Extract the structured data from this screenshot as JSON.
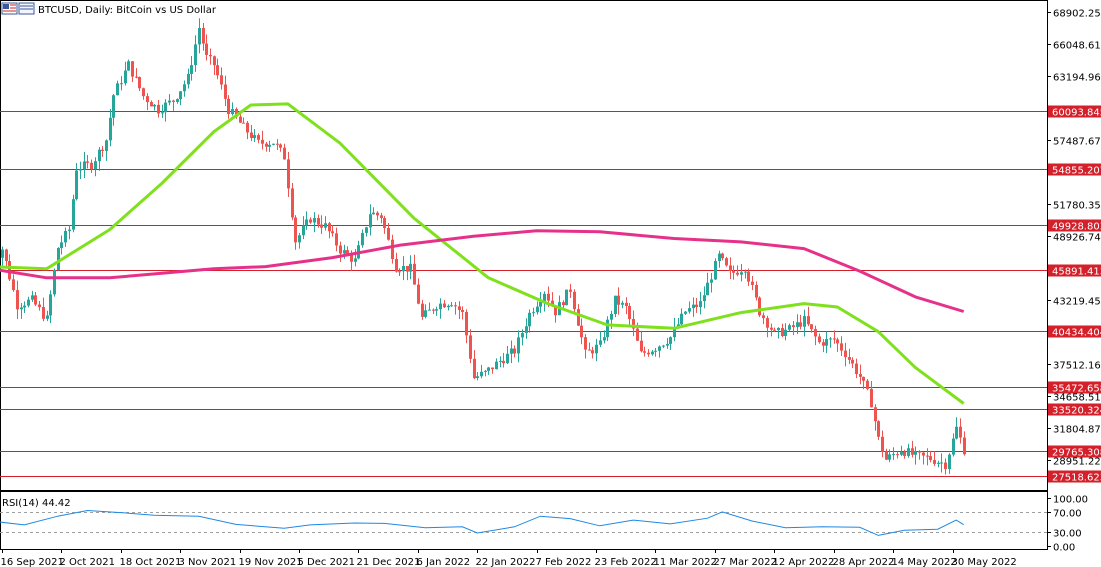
{
  "chart_data": {
    "type": "candlestick",
    "symbol": "BTCUSD",
    "timeframe": "Daily",
    "description": "BitCoin vs US Dollar",
    "title": "BTCUSD, Daily:  BitCoin vs US Dollar",
    "price_axis": {
      "ylim": [
        26290,
        69600
      ],
      "ticks": [
        "68902.255",
        "66048.610",
        "63194.965",
        "57487.675",
        "51780.355",
        "48926.740",
        "43219.455",
        "37512.160",
        "34658.515",
        "31804.870",
        "28951.225"
      ]
    },
    "horizontal_levels": [
      {
        "value": 60093.845,
        "label": "60093.845"
      },
      {
        "value": 54855.207,
        "label": "54855.207"
      },
      {
        "value": 49928.803,
        "label": "49928.803"
      },
      {
        "value": 45891.413,
        "label": "45891.413"
      },
      {
        "value": 40434.404,
        "label": "40434.404"
      },
      {
        "value": 35472.658,
        "label": "35472.658"
      },
      {
        "value": 33520.324,
        "label": "33520.324"
      },
      {
        "value": 29765.308,
        "label": "29765.308"
      },
      {
        "value": 27518.623,
        "label": "27518.623"
      }
    ],
    "close_series": {
      "name": "BTCUSD close",
      "x": [
        "2021-09-13",
        "2021-09-16",
        "2021-09-20",
        "2021-09-24",
        "2021-09-28",
        "2021-10-01",
        "2021-10-04",
        "2021-10-06",
        "2021-10-10",
        "2021-10-14",
        "2021-10-16",
        "2021-10-20",
        "2021-10-24",
        "2021-10-28",
        "2021-11-01",
        "2021-11-05",
        "2021-11-08",
        "2021-11-10",
        "2021-11-12",
        "2021-11-16",
        "2021-11-20",
        "2021-11-24",
        "2021-11-28",
        "2021-12-01",
        "2021-12-04",
        "2021-12-08",
        "2021-12-12",
        "2021-12-16",
        "2021-12-20",
        "2021-12-24",
        "2021-12-27",
        "2021-12-31",
        "2022-01-04",
        "2022-01-07",
        "2022-01-11",
        "2022-01-15",
        "2022-01-18",
        "2022-01-21",
        "2022-01-24",
        "2022-01-28",
        "2022-02-01",
        "2022-02-05",
        "2022-02-09",
        "2022-02-12",
        "2022-02-16",
        "2022-02-20",
        "2022-02-24",
        "2022-02-28",
        "2022-03-03",
        "2022-03-07",
        "2022-03-11",
        "2022-03-15",
        "2022-03-19",
        "2022-03-23",
        "2022-03-28",
        "2022-03-31",
        "2022-04-04",
        "2022-04-08",
        "2022-04-12",
        "2022-04-16",
        "2022-04-20",
        "2022-04-24",
        "2022-04-28",
        "2022-05-01",
        "2022-05-05",
        "2022-05-08",
        "2022-05-10",
        "2022-05-12",
        "2022-05-16",
        "2022-05-20",
        "2022-05-24",
        "2022-05-28",
        "2022-05-31",
        "2022-06-02"
      ],
      "values": [
        46500,
        47800,
        42800,
        43200,
        41500,
        47900,
        49500,
        55000,
        55300,
        57500,
        61500,
        64200,
        61400,
        60200,
        61000,
        63000,
        67500,
        64800,
        64200,
        60200,
        58600,
        57200,
        57300,
        56000,
        48500,
        50500,
        49800,
        47700,
        46700,
        51000,
        50700,
        46200,
        46000,
        41600,
        42800,
        43100,
        42000,
        36300,
        36700,
        37800,
        38700,
        42000,
        44000,
        42200,
        44200,
        38400,
        39200,
        43200,
        42500,
        38400,
        39000,
        39900,
        42200,
        42900,
        47100,
        45500,
        46200,
        42200,
        40200,
        40600,
        41400,
        39400,
        39700,
        38500,
        36400,
        34100,
        30800,
        29000,
        29900,
        29300,
        29100,
        28600,
        31800,
        29900
      ]
    },
    "moving_averages": [
      {
        "color": "#7fe01c",
        "x": [
          "2021-09-13",
          "2021-09-28",
          "2021-10-15",
          "2021-10-29",
          "2021-11-12",
          "2021-11-22",
          "2021-12-02",
          "2021-12-16",
          "2022-01-05",
          "2022-01-25",
          "2022-02-10",
          "2022-02-26",
          "2022-03-16",
          "2022-04-03",
          "2022-04-20",
          "2022-04-29",
          "2022-05-10",
          "2022-05-20",
          "2022-06-02"
        ],
        "values": [
          46200,
          46000,
          49500,
          53600,
          58200,
          60600,
          60700,
          57200,
          50500,
          45200,
          42900,
          41000,
          40700,
          42100,
          42900,
          42600,
          40400,
          37200,
          34000
        ]
      },
      {
        "color": "#e6318a",
        "x": [
          "2021-09-13",
          "2021-09-28",
          "2021-10-15",
          "2021-10-29",
          "2021-11-12",
          "2021-11-26",
          "2021-12-14",
          "2022-01-01",
          "2022-01-21",
          "2022-02-07",
          "2022-02-24",
          "2022-03-16",
          "2022-04-03",
          "2022-04-20",
          "2022-05-05",
          "2022-05-20",
          "2022-06-02"
        ],
        "values": [
          46000,
          45200,
          45200,
          45600,
          46000,
          46200,
          47000,
          48100,
          48900,
          49400,
          49300,
          48700,
          48400,
          47800,
          45800,
          43500,
          42200
        ]
      }
    ],
    "time_axis": {
      "ticks": [
        {
          "date": "2021-09-16",
          "label": "16 Sep 2021"
        },
        {
          "date": "2021-10-02",
          "label": "2 Oct 2021"
        },
        {
          "date": "2021-10-18",
          "label": "18 Oct 2021"
        },
        {
          "date": "2021-11-03",
          "label": "3 Nov 2021"
        },
        {
          "date": "2021-11-19",
          "label": "19 Nov 2021"
        },
        {
          "date": "2021-12-05",
          "label": "5 Dec 2021"
        },
        {
          "date": "2021-12-21",
          "label": "21 Dec 2021"
        },
        {
          "date": "2022-01-06",
          "label": "6 Jan 2022"
        },
        {
          "date": "2022-01-22",
          "label": "22 Jan 2022"
        },
        {
          "date": "2022-02-07",
          "label": "7 Feb 2022"
        },
        {
          "date": "2022-02-23",
          "label": "23 Feb 2022"
        },
        {
          "date": "2022-03-11",
          "label": "11 Mar 2022"
        },
        {
          "date": "2022-03-27",
          "label": "27 Mar 2022"
        },
        {
          "date": "2022-04-12",
          "label": "12 Apr 2022"
        },
        {
          "date": "2022-04-28",
          "label": "28 Apr 2022"
        },
        {
          "date": "2022-05-14",
          "label": "14 May 2022"
        },
        {
          "date": "2022-05-30",
          "label": "30 May 2022"
        }
      ]
    },
    "rsi": {
      "label": "RSI(14) 44.42",
      "period": 14,
      "last_value": 44.42,
      "ylim": [
        0,
        100
      ],
      "ticks": [
        "100.00",
        "70.00",
        "30.00",
        "0.00"
      ],
      "x": [
        "2021-09-13",
        "2021-09-22",
        "2021-10-01",
        "2021-10-09",
        "2021-10-19",
        "2021-10-27",
        "2021-11-08",
        "2021-11-18",
        "2021-12-01",
        "2021-12-08",
        "2021-12-20",
        "2021-12-28",
        "2022-01-08",
        "2022-01-18",
        "2022-01-22",
        "2022-02-01",
        "2022-02-08",
        "2022-02-16",
        "2022-02-24",
        "2022-03-05",
        "2022-03-15",
        "2022-03-25",
        "2022-03-29",
        "2022-04-06",
        "2022-04-15",
        "2022-04-25",
        "2022-05-05",
        "2022-05-10",
        "2022-05-17",
        "2022-05-26",
        "2022-05-31",
        "2022-06-02"
      ],
      "values": [
        52,
        44,
        62,
        74,
        69,
        64,
        62,
        45,
        37,
        44,
        48,
        47,
        38,
        40,
        27,
        40,
        62,
        57,
        42,
        54,
        46,
        58,
        71,
        52,
        38,
        40,
        39,
        22,
        33,
        35,
        54,
        44.42
      ]
    },
    "colors": {
      "up": "#26a69a",
      "down": "#ef5350",
      "level": "#d4202a",
      "rsi": "#1e88e5",
      "fast_ma": "#7fe01c",
      "slow_ma": "#e6318a"
    }
  }
}
